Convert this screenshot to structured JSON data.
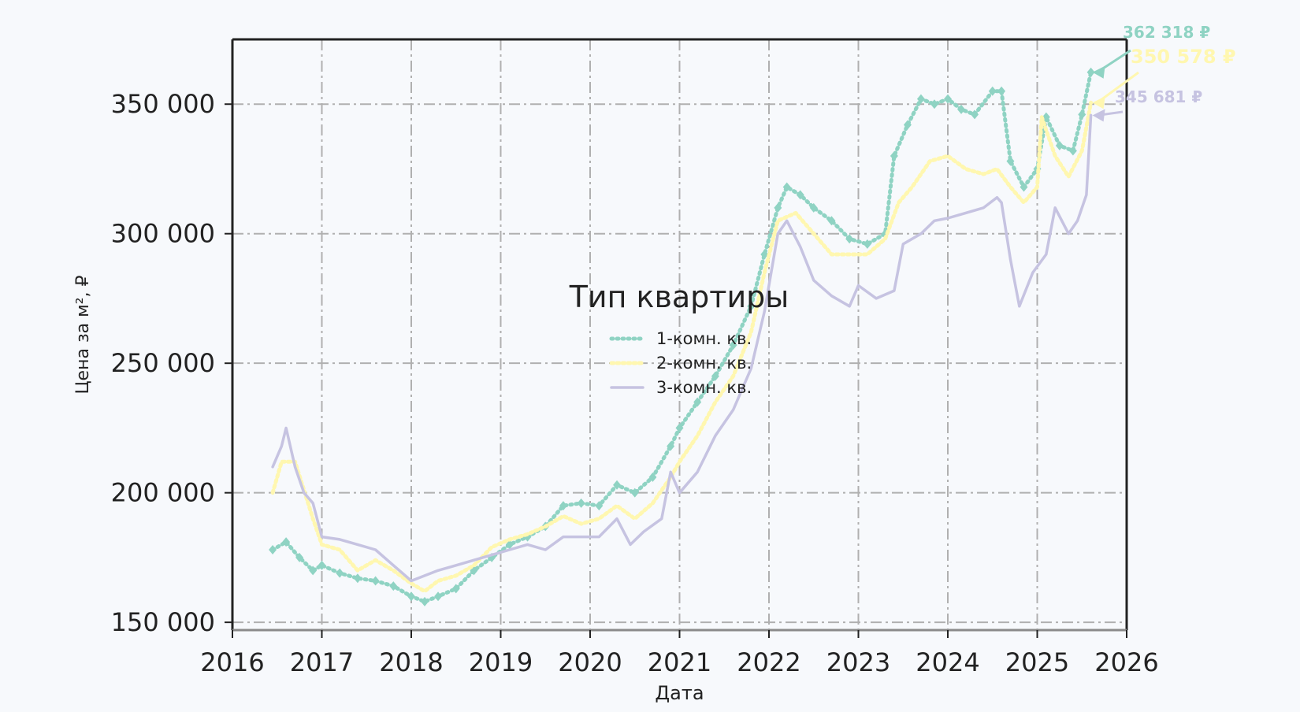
{
  "chart_data": {
    "type": "line",
    "title": "",
    "xlabel": "Дата",
    "ylabel": "Цена за м², ₽",
    "xlim": [
      2016,
      2026
    ],
    "ylim": [
      147000,
      375000
    ],
    "grid": true,
    "x_ticks": [
      "2016",
      "2017",
      "2018",
      "2019",
      "2020",
      "2021",
      "2022",
      "2023",
      "2024",
      "2025",
      "2026"
    ],
    "y_ticks": [
      {
        "value": 150000,
        "label": "150 000"
      },
      {
        "value": 200000,
        "label": "200 000"
      },
      {
        "value": 250000,
        "label": "250 000"
      },
      {
        "value": 300000,
        "label": "300 000"
      },
      {
        "value": 350000,
        "label": "350 000"
      }
    ],
    "legend": {
      "title": "Тип квартиры",
      "placement": "center"
    },
    "series": [
      {
        "name": "1-комн. кв.",
        "color": "#8fd3c3",
        "style": "dotted-diamond",
        "points": [
          [
            2016.45,
            178000
          ],
          [
            2016.6,
            181000
          ],
          [
            2016.75,
            175000
          ],
          [
            2016.9,
            170000
          ],
          [
            2017.0,
            172000
          ],
          [
            2017.2,
            169000
          ],
          [
            2017.4,
            167000
          ],
          [
            2017.6,
            166000
          ],
          [
            2017.8,
            164000
          ],
          [
            2018.0,
            160000
          ],
          [
            2018.15,
            158000
          ],
          [
            2018.3,
            160000
          ],
          [
            2018.5,
            163000
          ],
          [
            2018.7,
            170000
          ],
          [
            2018.9,
            175000
          ],
          [
            2019.1,
            180000
          ],
          [
            2019.3,
            183000
          ],
          [
            2019.5,
            187000
          ],
          [
            2019.7,
            195000
          ],
          [
            2019.9,
            196000
          ],
          [
            2020.1,
            195000
          ],
          [
            2020.3,
            203000
          ],
          [
            2020.5,
            200000
          ],
          [
            2020.7,
            206000
          ],
          [
            2020.9,
            218000
          ],
          [
            2021.0,
            225000
          ],
          [
            2021.2,
            235000
          ],
          [
            2021.4,
            245000
          ],
          [
            2021.6,
            257000
          ],
          [
            2021.8,
            272000
          ],
          [
            2021.95,
            292000
          ],
          [
            2022.1,
            310000
          ],
          [
            2022.2,
            318000
          ],
          [
            2022.35,
            315000
          ],
          [
            2022.5,
            310000
          ],
          [
            2022.7,
            305000
          ],
          [
            2022.9,
            298000
          ],
          [
            2023.1,
            296000
          ],
          [
            2023.3,
            300000
          ],
          [
            2023.4,
            330000
          ],
          [
            2023.55,
            342000
          ],
          [
            2023.7,
            352000
          ],
          [
            2023.85,
            350000
          ],
          [
            2024.0,
            352000
          ],
          [
            2024.15,
            348000
          ],
          [
            2024.3,
            346000
          ],
          [
            2024.5,
            355000
          ],
          [
            2024.6,
            355000
          ],
          [
            2024.7,
            328000
          ],
          [
            2024.85,
            318000
          ],
          [
            2025.0,
            325000
          ],
          [
            2025.1,
            345000
          ],
          [
            2025.25,
            334000
          ],
          [
            2025.4,
            332000
          ],
          [
            2025.5,
            346000
          ],
          [
            2025.6,
            362318
          ]
        ]
      },
      {
        "name": "2-комн. кв.",
        "color": "#fff7b0",
        "style": "dotted",
        "points": [
          [
            2016.45,
            200000
          ],
          [
            2016.55,
            212000
          ],
          [
            2016.7,
            212000
          ],
          [
            2016.9,
            190000
          ],
          [
            2017.0,
            180000
          ],
          [
            2017.2,
            178000
          ],
          [
            2017.4,
            170000
          ],
          [
            2017.6,
            174000
          ],
          [
            2017.8,
            170000
          ],
          [
            2018.0,
            165000
          ],
          [
            2018.15,
            162000
          ],
          [
            2018.3,
            166000
          ],
          [
            2018.5,
            168000
          ],
          [
            2018.7,
            172000
          ],
          [
            2018.9,
            179000
          ],
          [
            2019.1,
            182000
          ],
          [
            2019.3,
            184000
          ],
          [
            2019.5,
            187000
          ],
          [
            2019.7,
            191000
          ],
          [
            2019.9,
            188000
          ],
          [
            2020.1,
            190000
          ],
          [
            2020.3,
            195000
          ],
          [
            2020.5,
            190000
          ],
          [
            2020.7,
            196000
          ],
          [
            2020.9,
            206000
          ],
          [
            2021.0,
            212000
          ],
          [
            2021.2,
            222000
          ],
          [
            2021.4,
            235000
          ],
          [
            2021.6,
            245000
          ],
          [
            2021.8,
            262000
          ],
          [
            2021.95,
            285000
          ],
          [
            2022.1,
            305000
          ],
          [
            2022.3,
            308000
          ],
          [
            2022.5,
            300000
          ],
          [
            2022.7,
            292000
          ],
          [
            2022.9,
            292000
          ],
          [
            2023.1,
            292000
          ],
          [
            2023.3,
            298000
          ],
          [
            2023.45,
            312000
          ],
          [
            2023.6,
            318000
          ],
          [
            2023.8,
            328000
          ],
          [
            2024.0,
            330000
          ],
          [
            2024.2,
            325000
          ],
          [
            2024.4,
            323000
          ],
          [
            2024.55,
            325000
          ],
          [
            2024.7,
            318000
          ],
          [
            2024.85,
            312000
          ],
          [
            2025.0,
            318000
          ],
          [
            2025.05,
            345000
          ],
          [
            2025.2,
            330000
          ],
          [
            2025.35,
            322000
          ],
          [
            2025.5,
            332000
          ],
          [
            2025.6,
            350578
          ]
        ]
      },
      {
        "name": "3-комн. кв.",
        "color": "#c6c3e1",
        "style": "solid",
        "points": [
          [
            2016.45,
            210000
          ],
          [
            2016.55,
            218000
          ],
          [
            2016.6,
            225000
          ],
          [
            2016.7,
            210000
          ],
          [
            2016.8,
            200000
          ],
          [
            2016.9,
            196000
          ],
          [
            2017.0,
            183000
          ],
          [
            2017.2,
            182000
          ],
          [
            2017.4,
            180000
          ],
          [
            2017.6,
            178000
          ],
          [
            2017.8,
            172000
          ],
          [
            2018.0,
            166000
          ],
          [
            2018.15,
            168000
          ],
          [
            2018.3,
            170000
          ],
          [
            2018.5,
            172000
          ],
          [
            2018.7,
            174000
          ],
          [
            2018.9,
            176000
          ],
          [
            2019.1,
            178000
          ],
          [
            2019.3,
            180000
          ],
          [
            2019.5,
            178000
          ],
          [
            2019.7,
            183000
          ],
          [
            2019.9,
            183000
          ],
          [
            2020.1,
            183000
          ],
          [
            2020.3,
            190000
          ],
          [
            2020.45,
            180000
          ],
          [
            2020.6,
            185000
          ],
          [
            2020.8,
            190000
          ],
          [
            2020.9,
            208000
          ],
          [
            2021.0,
            200000
          ],
          [
            2021.2,
            208000
          ],
          [
            2021.4,
            222000
          ],
          [
            2021.6,
            232000
          ],
          [
            2021.8,
            248000
          ],
          [
            2021.95,
            270000
          ],
          [
            2022.1,
            300000
          ],
          [
            2022.2,
            305000
          ],
          [
            2022.35,
            295000
          ],
          [
            2022.5,
            282000
          ],
          [
            2022.7,
            276000
          ],
          [
            2022.9,
            272000
          ],
          [
            2023.0,
            280000
          ],
          [
            2023.2,
            275000
          ],
          [
            2023.4,
            278000
          ],
          [
            2023.5,
            296000
          ],
          [
            2023.7,
            300000
          ],
          [
            2023.85,
            305000
          ],
          [
            2024.0,
            306000
          ],
          [
            2024.2,
            308000
          ],
          [
            2024.4,
            310000
          ],
          [
            2024.55,
            314000
          ],
          [
            2024.6,
            312000
          ],
          [
            2024.7,
            290000
          ],
          [
            2024.8,
            272000
          ],
          [
            2024.95,
            285000
          ],
          [
            2025.1,
            292000
          ],
          [
            2025.2,
            310000
          ],
          [
            2025.35,
            300000
          ],
          [
            2025.45,
            305000
          ],
          [
            2025.55,
            315000
          ],
          [
            2025.6,
            345681
          ]
        ]
      }
    ],
    "annotations": [
      {
        "text": "362 318 ₽",
        "series": "1-комн. кв.",
        "value": 362318
      },
      {
        "text": "350 578 ₽",
        "series": "2-комн. кв.",
        "value": 350578
      },
      {
        "text": "345 681 ₽",
        "series": "3-комн. кв.",
        "value": 345681
      }
    ]
  }
}
